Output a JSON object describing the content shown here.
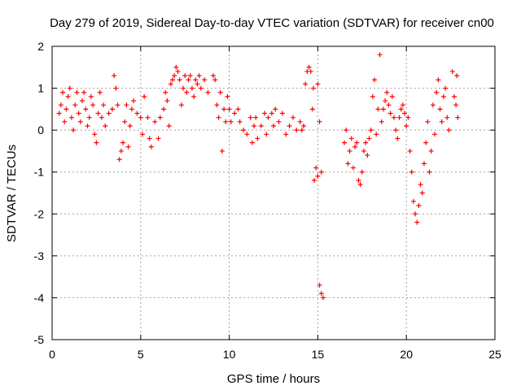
{
  "chart_data": {
    "type": "scatter",
    "title": "Day 279 of 2019, Sidereal Day-to-day VTEC variation (SDTVAR) for receiver cn00",
    "xlabel": "GPS time / hours",
    "ylabel": "SDTVAR / TECUs",
    "xlim": [
      0,
      25
    ],
    "ylim": [
      -5,
      2
    ],
    "xticks": [
      "0",
      "5",
      "10",
      "15",
      "20",
      "25"
    ],
    "yticks": [
      "-5",
      "-4",
      "-3",
      "-2",
      "-1",
      "0",
      "1",
      "2"
    ],
    "grid": true,
    "marker": "+",
    "color": "#ff0000",
    "series": [
      {
        "name": "SDTVAR",
        "points": [
          [
            0.4,
            0.4
          ],
          [
            0.5,
            0.6
          ],
          [
            0.6,
            0.9
          ],
          [
            0.7,
            0.2
          ],
          [
            0.8,
            0.5
          ],
          [
            0.9,
            0.8
          ],
          [
            1.0,
            1.0
          ],
          [
            1.1,
            0.3
          ],
          [
            1.2,
            0.0
          ],
          [
            1.3,
            0.6
          ],
          [
            1.4,
            0.9
          ],
          [
            1.5,
            0.4
          ],
          [
            1.6,
            0.2
          ],
          [
            1.7,
            0.7
          ],
          [
            1.8,
            0.9
          ],
          [
            1.9,
            0.5
          ],
          [
            2.0,
            0.1
          ],
          [
            2.1,
            0.3
          ],
          [
            2.2,
            0.8
          ],
          [
            2.3,
            0.6
          ],
          [
            2.4,
            -0.1
          ],
          [
            2.5,
            -0.3
          ],
          [
            2.6,
            0.4
          ],
          [
            2.7,
            0.9
          ],
          [
            2.8,
            0.3
          ],
          [
            2.9,
            0.6
          ],
          [
            3.0,
            0.1
          ],
          [
            3.2,
            0.4
          ],
          [
            3.4,
            0.5
          ],
          [
            3.5,
            1.3
          ],
          [
            3.6,
            1.0
          ],
          [
            3.7,
            0.6
          ],
          [
            3.8,
            -0.7
          ],
          [
            3.9,
            -0.5
          ],
          [
            4.0,
            -0.3
          ],
          [
            4.1,
            0.2
          ],
          [
            4.2,
            0.6
          ],
          [
            4.3,
            -0.4
          ],
          [
            4.4,
            0.1
          ],
          [
            4.5,
            0.5
          ],
          [
            4.6,
            0.7
          ],
          [
            4.8,
            0.4
          ],
          [
            5.0,
            0.3
          ],
          [
            5.1,
            -0.1
          ],
          [
            5.2,
            0.8
          ],
          [
            5.4,
            0.3
          ],
          [
            5.5,
            -0.2
          ],
          [
            5.6,
            -0.4
          ],
          [
            5.8,
            0.2
          ],
          [
            6.0,
            -0.2
          ],
          [
            6.1,
            0.3
          ],
          [
            6.3,
            0.5
          ],
          [
            6.4,
            0.9
          ],
          [
            6.5,
            0.7
          ],
          [
            6.6,
            0.1
          ],
          [
            6.7,
            1.1
          ],
          [
            6.8,
            1.2
          ],
          [
            6.9,
            1.3
          ],
          [
            7.0,
            1.5
          ],
          [
            7.1,
            1.4
          ],
          [
            7.2,
            1.2
          ],
          [
            7.3,
            0.6
          ],
          [
            7.4,
            1.0
          ],
          [
            7.5,
            1.3
          ],
          [
            7.6,
            0.9
          ],
          [
            7.7,
            1.2
          ],
          [
            7.8,
            1.3
          ],
          [
            7.9,
            1.0
          ],
          [
            8.0,
            0.8
          ],
          [
            8.1,
            1.2
          ],
          [
            8.2,
            1.1
          ],
          [
            8.3,
            1.3
          ],
          [
            8.4,
            1.0
          ],
          [
            8.6,
            1.2
          ],
          [
            8.8,
            0.9
          ],
          [
            9.1,
            1.3
          ],
          [
            9.2,
            1.2
          ],
          [
            9.3,
            0.6
          ],
          [
            9.4,
            0.3
          ],
          [
            9.5,
            0.9
          ],
          [
            9.6,
            -0.5
          ],
          [
            9.7,
            0.5
          ],
          [
            9.8,
            0.2
          ],
          [
            9.9,
            0.8
          ],
          [
            10.0,
            0.5
          ],
          [
            10.1,
            0.2
          ],
          [
            10.3,
            0.4
          ],
          [
            10.5,
            0.5
          ],
          [
            10.6,
            0.2
          ],
          [
            10.8,
            0.0
          ],
          [
            11.0,
            -0.1
          ],
          [
            11.2,
            0.3
          ],
          [
            11.3,
            -0.3
          ],
          [
            11.4,
            0.1
          ],
          [
            11.5,
            0.3
          ],
          [
            11.6,
            -0.2
          ],
          [
            11.8,
            0.1
          ],
          [
            12.0,
            0.4
          ],
          [
            12.1,
            -0.1
          ],
          [
            12.2,
            0.3
          ],
          [
            12.4,
            0.4
          ],
          [
            12.5,
            0.1
          ],
          [
            12.6,
            0.5
          ],
          [
            12.8,
            0.2
          ],
          [
            13.0,
            0.4
          ],
          [
            13.2,
            -0.1
          ],
          [
            13.4,
            0.1
          ],
          [
            13.6,
            0.3
          ],
          [
            13.8,
            0.0
          ],
          [
            14.0,
            0.2
          ],
          [
            14.1,
            0.0
          ],
          [
            14.2,
            0.1
          ],
          [
            14.3,
            1.1
          ],
          [
            14.4,
            1.4
          ],
          [
            14.5,
            1.5
          ],
          [
            14.6,
            1.4
          ],
          [
            14.7,
            0.5
          ],
          [
            14.8,
            -1.2
          ],
          [
            14.9,
            -0.9
          ],
          [
            15.0,
            -1.1
          ],
          [
            15.1,
            0.2
          ],
          [
            15.2,
            -1.0
          ],
          [
            14.75,
            1.0
          ],
          [
            15.0,
            1.1
          ],
          [
            15.1,
            -3.7
          ],
          [
            15.2,
            -3.9
          ],
          [
            15.3,
            -4.0
          ],
          [
            16.5,
            -0.3
          ],
          [
            16.6,
            0.0
          ],
          [
            16.7,
            -0.8
          ],
          [
            16.8,
            -0.5
          ],
          [
            16.9,
            -0.2
          ],
          [
            17.0,
            -0.9
          ],
          [
            17.1,
            -0.4
          ],
          [
            17.2,
            -0.3
          ],
          [
            17.3,
            -1.2
          ],
          [
            17.4,
            -1.3
          ],
          [
            17.5,
            -1.0
          ],
          [
            17.6,
            -0.5
          ],
          [
            17.7,
            -0.3
          ],
          [
            17.8,
            -0.6
          ],
          [
            17.9,
            -0.2
          ],
          [
            18.0,
            0.0
          ],
          [
            18.1,
            0.8
          ],
          [
            18.2,
            1.2
          ],
          [
            18.3,
            -0.1
          ],
          [
            18.4,
            0.5
          ],
          [
            18.5,
            1.8
          ],
          [
            18.6,
            0.2
          ],
          [
            18.7,
            0.5
          ],
          [
            18.8,
            0.7
          ],
          [
            18.9,
            0.9
          ],
          [
            19.0,
            0.6
          ],
          [
            19.1,
            0.4
          ],
          [
            19.2,
            0.8
          ],
          [
            19.3,
            0.3
          ],
          [
            19.4,
            0.0
          ],
          [
            19.5,
            -0.2
          ],
          [
            19.6,
            0.3
          ],
          [
            19.7,
            0.5
          ],
          [
            19.8,
            0.6
          ],
          [
            19.9,
            0.4
          ],
          [
            20.0,
            0.1
          ],
          [
            20.1,
            0.3
          ],
          [
            20.2,
            -0.5
          ],
          [
            20.3,
            -1.0
          ],
          [
            20.4,
            -1.7
          ],
          [
            20.5,
            -2.0
          ],
          [
            20.6,
            -2.2
          ],
          [
            20.7,
            -1.8
          ],
          [
            20.8,
            -1.3
          ],
          [
            20.9,
            -1.5
          ],
          [
            21.0,
            -0.8
          ],
          [
            21.1,
            -0.3
          ],
          [
            21.2,
            0.2
          ],
          [
            21.3,
            -1.0
          ],
          [
            21.4,
            -0.5
          ],
          [
            21.5,
            0.6
          ],
          [
            21.6,
            -0.1
          ],
          [
            21.7,
            0.9
          ],
          [
            21.8,
            1.2
          ],
          [
            21.9,
            0.5
          ],
          [
            22.0,
            0.2
          ],
          [
            22.1,
            0.8
          ],
          [
            22.2,
            1.0
          ],
          [
            22.3,
            0.3
          ],
          [
            22.4,
            0.0
          ],
          [
            22.6,
            1.4
          ],
          [
            22.7,
            0.8
          ],
          [
            22.8,
            0.6
          ],
          [
            22.9,
            0.3
          ],
          [
            22.85,
            1.3
          ]
        ]
      }
    ]
  }
}
